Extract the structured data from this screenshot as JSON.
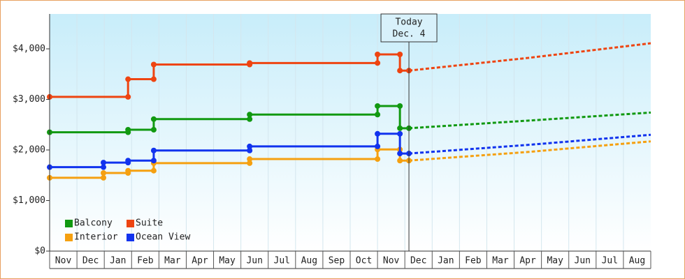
{
  "chart_data": {
    "type": "line",
    "categories": [
      "Nov",
      "Dec",
      "Jan",
      "Feb",
      "Mar",
      "Apr",
      "May",
      "Jun",
      "Jul",
      "Aug",
      "Sep",
      "Oct",
      "Nov",
      "Dec",
      "Jan",
      "Feb",
      "Mar",
      "Apr",
      "May",
      "Jun",
      "Jul",
      "Aug"
    ],
    "xlim": [
      0,
      22
    ],
    "ylim": [
      0,
      4690
    ],
    "yticks": [
      {
        "value": 0,
        "label": "$0"
      },
      {
        "value": 1000,
        "label": "$1,000"
      },
      {
        "value": 2000,
        "label": "$2,000"
      },
      {
        "value": 3000,
        "label": "$3,000"
      },
      {
        "value": 4000,
        "label": "$4,000"
      }
    ],
    "grid": true,
    "today": {
      "x": 13.15,
      "label": [
        "Today",
        "Dec. 4"
      ]
    },
    "series": [
      {
        "name": "Balcony",
        "color": "#119911",
        "x": [
          0,
          2.87,
          2.87,
          3.81,
          3.81,
          7.32,
          7.32,
          12.0,
          12.0,
          12.82,
          12.82,
          13.15
        ],
        "values": [
          2350,
          2350,
          2400,
          2400,
          2610,
          2610,
          2700,
          2700,
          2870,
          2870,
          2430,
          2430
        ],
        "projection_x": [
          13.15,
          17.5,
          22
        ],
        "projection_values": [
          2430,
          2580,
          2740
        ]
      },
      {
        "name": "Suite",
        "color": "#ee4411",
        "x": [
          0,
          2.87,
          2.87,
          3.81,
          3.81,
          7.32,
          7.32,
          12.0,
          12.0,
          12.82,
          12.82,
          13.15
        ],
        "values": [
          3050,
          3050,
          3400,
          3400,
          3690,
          3690,
          3720,
          3720,
          3890,
          3890,
          3570,
          3570
        ],
        "projection_x": [
          13.15,
          17.5,
          22
        ],
        "projection_values": [
          3570,
          3820,
          4110
        ]
      },
      {
        "name": "Interior",
        "color": "#f5a010",
        "x": [
          0,
          1.97,
          1.97,
          2.87,
          2.87,
          3.81,
          3.81,
          7.32,
          7.32,
          12.0,
          12.0,
          12.82,
          12.82,
          13.15
        ],
        "values": [
          1450,
          1450,
          1545,
          1545,
          1590,
          1590,
          1740,
          1740,
          1820,
          1820,
          2010,
          2010,
          1790,
          1790
        ],
        "projection_x": [
          13.15,
          17.5,
          22
        ],
        "projection_values": [
          1790,
          1960,
          2170
        ]
      },
      {
        "name": "Ocean View",
        "color": "#1133ee",
        "x": [
          0,
          1.97,
          1.97,
          2.87,
          2.87,
          3.81,
          3.81,
          7.32,
          7.32,
          12.0,
          12.0,
          12.82,
          12.82,
          13.15
        ],
        "values": [
          1660,
          1660,
          1750,
          1750,
          1790,
          1790,
          1990,
          1990,
          2070,
          2070,
          2320,
          2320,
          1930,
          1930
        ],
        "projection_x": [
          13.15,
          17.5,
          22
        ],
        "projection_values": [
          1930,
          2100,
          2300
        ]
      }
    ]
  }
}
